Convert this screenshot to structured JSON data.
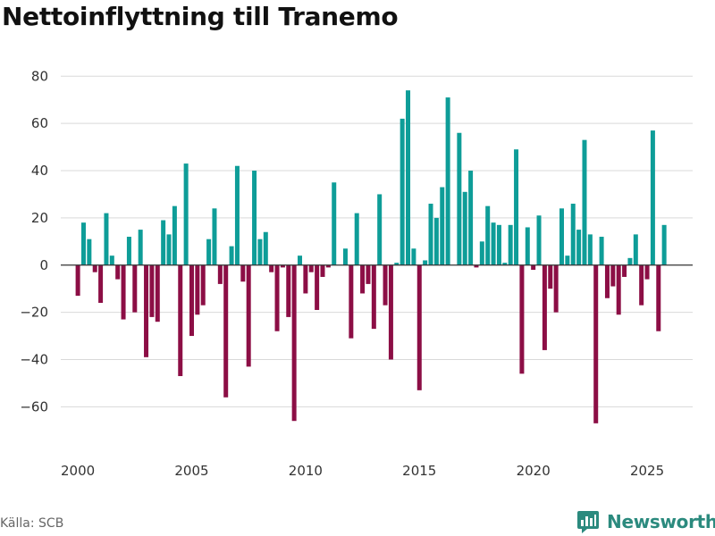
{
  "title": "Nettoinflyttning till Tranemo",
  "source": "Källa: SCB",
  "brand": "Newsworthy",
  "colors": {
    "positive": "#0e9d98",
    "negative": "#8c0e45",
    "grid": "#d9d9d9",
    "zero": "#333333"
  },
  "chart_data": {
    "type": "bar",
    "title": "Nettoinflyttning till Tranemo",
    "xlabel": "",
    "ylabel": "",
    "frequency": "quarterly",
    "start": "2000 Q1",
    "xlim": [
      1999.25,
      2027.0
    ],
    "ylim": [
      -75,
      82
    ],
    "yticks": [
      -60,
      -40,
      -20,
      0,
      20,
      40,
      60,
      80
    ],
    "xticks": [
      2000,
      2005,
      2010,
      2015,
      2020,
      2025
    ],
    "values": [
      -13,
      18,
      11,
      -3,
      -16,
      22,
      4,
      -6,
      -23,
      12,
      -20,
      15,
      -39,
      -22,
      -24,
      19,
      13,
      25,
      -47,
      43,
      -30,
      -21,
      -17,
      11,
      24,
      -8,
      -56,
      8,
      42,
      -7,
      -43,
      40,
      11,
      14,
      -3,
      -28,
      -1,
      -22,
      -66,
      4,
      -12,
      -3,
      -19,
      -5,
      -1,
      35,
      0,
      7,
      -31,
      22,
      -12,
      -8,
      -27,
      30,
      -17,
      -40,
      1,
      62,
      74,
      7,
      -53,
      2,
      26,
      20,
      33,
      71,
      0,
      56,
      31,
      40,
      -1,
      10,
      25,
      18,
      17,
      1,
      17,
      49,
      -46,
      16,
      -2,
      21,
      -36,
      -10,
      -20,
      24,
      4,
      26,
      15,
      53,
      13,
      -67,
      12,
      -14,
      -9,
      -21,
      -5,
      3,
      13,
      -17,
      -6,
      57,
      -28,
      17
    ]
  }
}
